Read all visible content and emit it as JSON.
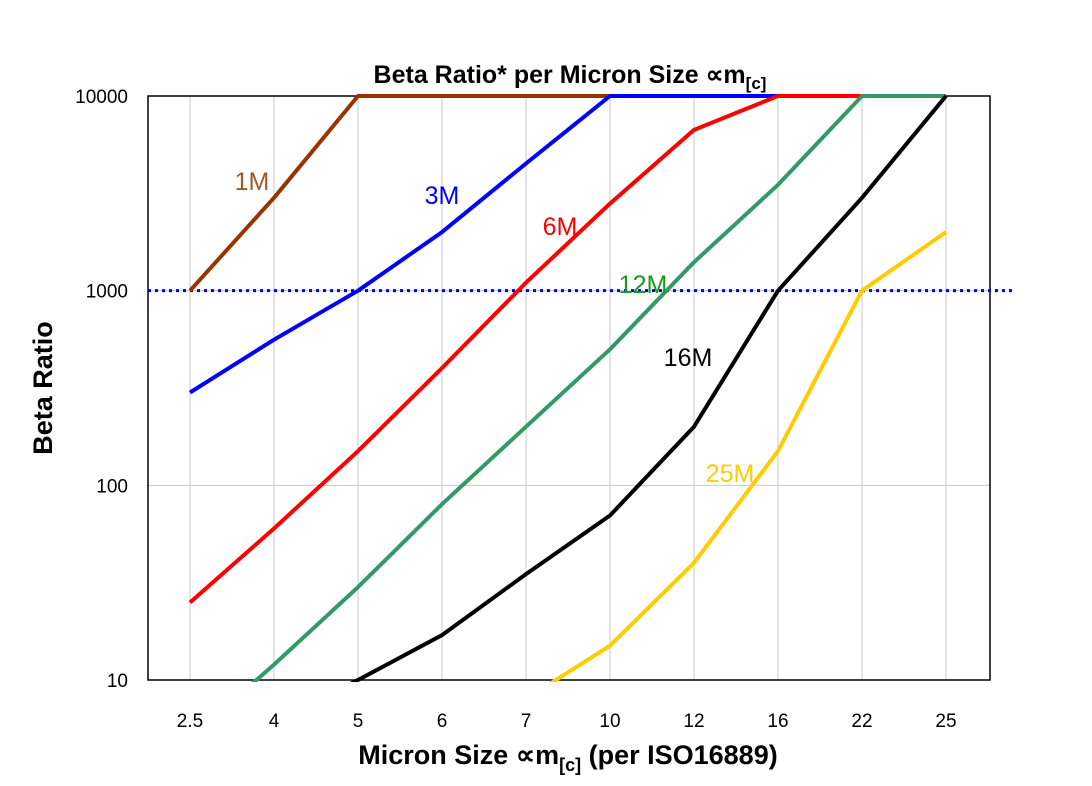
{
  "chart_data": {
    "type": "line",
    "title": "Beta Ratio* per Micron Size ∝m",
    "title_subscript": "[c]",
    "xlabel": "Micron Size ∝m",
    "xlabel_subscript": "[c]",
    "xlabel_suffix": " (per ISO16889)",
    "ylabel": "Beta Ratio",
    "yscale": "log",
    "ylim": [
      10,
      10000
    ],
    "yticks": [
      "10000",
      "1000",
      "100",
      "10"
    ],
    "categories": [
      "2.5",
      "4",
      "5",
      "6",
      "7",
      "10",
      "12",
      "16",
      "22",
      "25"
    ],
    "grid": true,
    "reference_line": {
      "y": 1000,
      "style": "dotted",
      "color": "#0000ee"
    },
    "series": [
      {
        "name": "1M",
        "color": "#993300",
        "label_color": "#9b5a2a",
        "values": [
          1000,
          3000,
          10000,
          10000,
          10000,
          10000,
          10000,
          10000,
          10000,
          10000
        ]
      },
      {
        "name": "3M",
        "color": "#0000ff",
        "label_color": "#0000ff",
        "values": [
          300,
          560,
          1000,
          2000,
          4500,
          10000,
          10000,
          10000,
          10000,
          10000
        ]
      },
      {
        "name": "6M",
        "color": "#ff0000",
        "label_color": "#ff0000",
        "values": [
          25,
          60,
          150,
          400,
          1100,
          2800,
          6700,
          10000,
          10000,
          10000
        ]
      },
      {
        "name": "12M",
        "color": "#339966",
        "label_color": "#1a9a1a",
        "values": [
          5,
          12,
          30,
          80,
          200,
          500,
          1400,
          3500,
          10000,
          10000
        ]
      },
      {
        "name": "16M",
        "color": "#000000",
        "label_color": "#000000",
        "values": [
          null,
          6,
          10,
          17,
          35,
          70,
          200,
          1000,
          3000,
          10000
        ]
      },
      {
        "name": "25M",
        "color": "#ffcc00",
        "label_color": "#ffcc00",
        "values": [
          null,
          null,
          null,
          null,
          8,
          15,
          40,
          150,
          1000,
          2000
        ]
      }
    ]
  }
}
